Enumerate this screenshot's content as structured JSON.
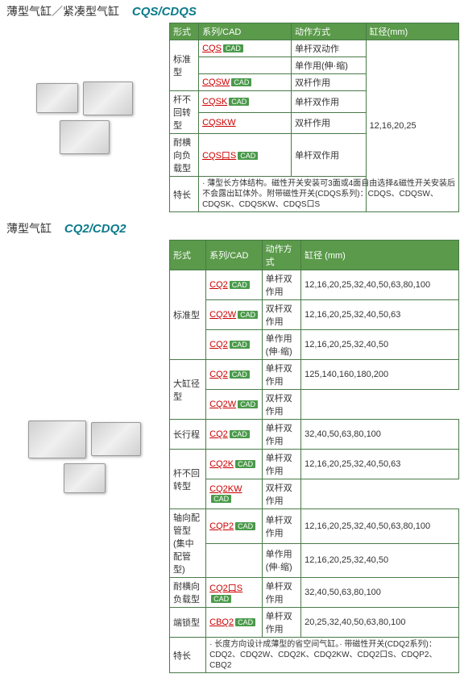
{
  "s1": {
    "title_cn": "薄型气缸／紧凑型气缸",
    "title_en": "CQS/CDQS",
    "h": [
      "形式",
      "系列/CAD",
      "动作方式",
      "缸径(mm)"
    ],
    "rows": [
      {
        "type": "标准型",
        "rs": 3,
        "series": "CQS",
        "cad": 1,
        "act": "单杆双动作",
        "bore": "12,16,20,25",
        "brs": 7
      },
      {
        "series": "",
        "act": "单作用(伸·缩)"
      },
      {
        "series": "CQSW",
        "cad": 1,
        "act": "双杆作用"
      },
      {
        "type": "杆不回转型",
        "rs": 2,
        "series": "CQSK",
        "cad": 1,
        "act": "单杆双作用"
      },
      {
        "series": "CQSKW",
        "act": "双杆作用"
      },
      {
        "type": "耐横向负载型",
        "rs": 1,
        "series": "CQS口S",
        "cad": 1,
        "act": "单杆双作用"
      }
    ],
    "feat_label": "特长",
    "feat": "· 薄型长方体结构。磁性开关安装可3面或4面自由选择&磁性开关安装后不会露出缸体外。附带磁性开关(CDQS系列)：CDQS、CDQSW、CDQSK、CDQSKW、CDQS口S"
  },
  "s2": {
    "title_cn": "薄型气缸",
    "title_en": "CQ2/CDQ2",
    "h": [
      "形式",
      "系列/CAD",
      "动作方式",
      "缸径 (mm)"
    ],
    "rows": [
      {
        "type": "标准型",
        "rs": 3,
        "series": "CQ2",
        "cad": 1,
        "act": "单杆双作用",
        "bore": "12,16,20,25,32,40,50,63,80,100"
      },
      {
        "series": "CQ2W",
        "cad": 1,
        "act": "双杆双作用",
        "bore": "12,16,20,25,32,40,50,63"
      },
      {
        "series": "CQ2",
        "cad": 1,
        "act": "单作用(伸·缩)",
        "bore": "12,16,20,25,32,40,50"
      },
      {
        "type": "大缸径型",
        "rs": 2,
        "series": "CQ2",
        "cad": 1,
        "act": "单杆双作用",
        "bore": "125,140,160,180,200"
      },
      {
        "series": "CQ2W",
        "cad": 1,
        "act": "双杆双作用"
      },
      {
        "type": "长行程",
        "rs": 1,
        "series": "CQ2",
        "cad": 1,
        "act": "单杆双作用",
        "bore": "32,40,50,63,80,100"
      },
      {
        "type": "杆不回转型",
        "rs": 2,
        "series": "CQ2K",
        "cad": 1,
        "act": "单杆双作用",
        "bore": "12,16,20,25,32,40,50,63"
      },
      {
        "series": "CQ2KW",
        "cad": 1,
        "act": "双杆双作用"
      },
      {
        "type": "轴向配管型(集中配管型)",
        "rs": 2,
        "series": "CQP2",
        "cad": 1,
        "act": "单杆双作用",
        "bore": "12,16,20,25,32,40,50,63,80,100"
      },
      {
        "series": "",
        "act": "单作用(伸·缩)",
        "bore": "12,16,20,25,32,40,50"
      },
      {
        "type": "耐横向负载型",
        "rs": 1,
        "series": "CQ2口S",
        "cad": 1,
        "act": "单杆双作用",
        "bore": "32,40,50,63,80,100"
      },
      {
        "type": "端锁型",
        "rs": 1,
        "series": "CBQ2",
        "cad": 1,
        "act": "单杆双作用",
        "bore": "20,25,32,40,50,63,80,100"
      }
    ],
    "feat_label": "特长",
    "feat": "· 长度方向设计成薄型的省空间气缸。· 带磁性开关(CDQ2系列)：CDQ2、CDQ2W、CDQ2K、CDQ2KW、CDQ2口S、CDQP2、CBQ2"
  }
}
